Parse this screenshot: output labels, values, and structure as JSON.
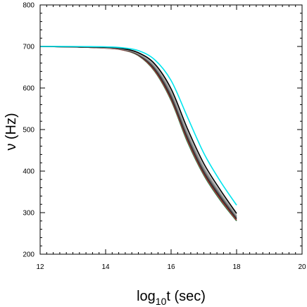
{
  "chart_data": {
    "type": "line",
    "title": "",
    "xlabel": {
      "base": "log",
      "sub": "10",
      "rest": "t (sec)"
    },
    "ylabel": "ν (Hz)",
    "xlim": [
      12,
      20
    ],
    "ylim": [
      200,
      800
    ],
    "x_ticks": [
      12,
      14,
      16,
      18,
      20
    ],
    "y_ticks": [
      200,
      300,
      400,
      500,
      600,
      700,
      800
    ],
    "x_minor_step": 0.2,
    "y_minor_step": 20,
    "grid": false,
    "legend": "none",
    "series": [
      {
        "color": "#2e8b57",
        "x": [
          12,
          13,
          14,
          14.5,
          15,
          15.5,
          16,
          16.5,
          17,
          17.5,
          18
        ],
        "y": [
          700,
          699,
          696,
          692,
          678,
          640,
          570,
          470,
          390,
          330,
          280
        ]
      },
      {
        "color": "#b03030",
        "x": [
          12,
          13,
          14,
          14.5,
          15,
          15.5,
          16,
          16.5,
          17,
          17.5,
          18
        ],
        "y": [
          700,
          699,
          696,
          692,
          679,
          642,
          573,
          474,
          393,
          333,
          282
        ]
      },
      {
        "color": "#2a2a2a",
        "x": [
          12,
          13,
          14,
          14.5,
          15,
          15.5,
          16,
          16.5,
          17,
          17.5,
          18
        ],
        "y": [
          700,
          699,
          697,
          693,
          680,
          645,
          577,
          479,
          397,
          337,
          285
        ]
      },
      {
        "color": "#555555",
        "x": [
          12,
          13,
          14,
          14.5,
          15,
          15.5,
          16,
          16.5,
          17,
          17.5,
          18
        ],
        "y": [
          700,
          699,
          697,
          693,
          681,
          648,
          582,
          484,
          401,
          341,
          288
        ]
      },
      {
        "color": "#8a8a8a",
        "x": [
          12,
          13,
          14,
          14.5,
          15,
          15.5,
          16,
          16.5,
          17,
          17.5,
          18
        ],
        "y": [
          700,
          699,
          697,
          694,
          682,
          651,
          587,
          489,
          406,
          345,
          291
        ]
      },
      {
        "color": "#b0b0b0",
        "x": [
          12,
          13,
          14,
          14.5,
          15,
          15.5,
          16,
          16.5,
          17,
          17.5,
          18
        ],
        "y": [
          700,
          699,
          697,
          694,
          683,
          654,
          592,
          495,
          411,
          349,
          294
        ]
      },
      {
        "color": "#000000",
        "x": [
          12,
          13,
          14,
          14.5,
          15,
          15.5,
          16,
          16.5,
          17,
          17.5,
          18
        ],
        "y": [
          700,
          699,
          698,
          695,
          685,
          658,
          598,
          502,
          418,
          355,
          298
        ]
      },
      {
        "color": "#00e5ee",
        "x": [
          12,
          13,
          14,
          14.5,
          15,
          15.5,
          16,
          16.5,
          17,
          17.5,
          18
        ],
        "y": [
          700,
          700,
          699,
          697,
          690,
          668,
          618,
          530,
          443,
          376,
          318
        ]
      }
    ]
  }
}
